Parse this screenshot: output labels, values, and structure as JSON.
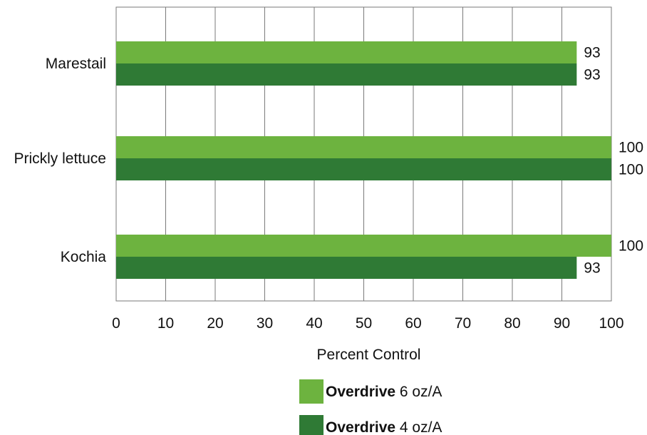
{
  "chart_data": {
    "type": "bar",
    "orientation": "horizontal",
    "categories": [
      "Marestail",
      "Prickly lettuce",
      "Kochia"
    ],
    "series": [
      {
        "name_bold": "Overdrive",
        "name_rest": " 6 oz/A",
        "color": "#6db33f",
        "values": [
          93,
          100,
          100
        ],
        "value_labels": [
          "93",
          "100",
          "100"
        ]
      },
      {
        "name_bold": "Overdrive",
        "name_rest": " 4 oz/A",
        "color": "#2f7a35",
        "values": [
          93,
          100,
          93
        ],
        "value_labels": [
          "93",
          "100",
          "93"
        ]
      }
    ],
    "xlabel": "Percent Control",
    "xlim": [
      0,
      100
    ],
    "xticks": [
      0,
      10,
      20,
      30,
      40,
      50,
      60,
      70,
      80,
      90,
      100
    ],
    "xtick_labels": [
      "0",
      "10",
      "20",
      "30",
      "40",
      "50",
      "60",
      "70",
      "80",
      "90",
      "100"
    ],
    "grid": "vertical",
    "legend_position": "bottom-center",
    "gridline_color": "#7a7a7a"
  }
}
